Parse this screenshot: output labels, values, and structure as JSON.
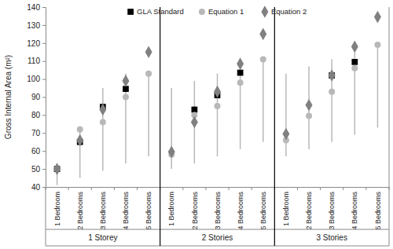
{
  "chart_data": {
    "type": "scatter",
    "y_label": "Gross Internal Area (m²)",
    "categories": [
      "1 Bedroom",
      "2 Bedrooms",
      "3 Bedrooms",
      "4 Bedrooms",
      "5 Bedrooms",
      "1 Bedroom",
      "2 Bedrooms",
      "3 Bedrooms",
      "4 Bedrooms",
      "5 Bedrooms",
      "1 Bedroom",
      "2 Bedrooms",
      "3 Bedrooms",
      "4 Bedrooms",
      "5 Bedrooms"
    ],
    "groups": [
      {
        "label": "1 Storey",
        "count": 5
      },
      {
        "label": "2 Stories",
        "count": 5
      },
      {
        "label": "3 Stories",
        "count": 5
      }
    ],
    "series": [
      {
        "name": "GLA Standard",
        "color": "#000000",
        "marker": "square",
        "values": [
          50,
          65,
          84.5,
          94.5,
          null,
          null,
          83,
          91,
          103.5,
          null,
          null,
          null,
          102,
          109.5,
          null
        ]
      },
      {
        "name": "Equation 1",
        "color": "#b8b8b8",
        "marker": "circle",
        "values": [
          50,
          72,
          76,
          90,
          103,
          58,
          80,
          85,
          98,
          111,
          66,
          79.5,
          93,
          106,
          119
        ],
        "error_low": [
          41,
          45,
          49,
          53,
          57,
          50,
          53,
          57,
          61,
          65,
          57,
          61,
          65,
          69,
          73
        ],
        "error_high": [
          50,
          72,
          95,
          103,
          103,
          95,
          99,
          103,
          107,
          111,
          103,
          107,
          111,
          115,
          119
        ]
      },
      {
        "name": "Equation 2",
        "color": "#808080",
        "marker": "diamond",
        "values": [
          50,
          66,
          83,
          99,
          115,
          59.5,
          76,
          93,
          108.5,
          125,
          69.5,
          85.5,
          102,
          118,
          134.5
        ]
      }
    ],
    "ylim": [
      40,
      140
    ],
    "yticks": [
      40,
      50,
      60,
      70,
      80,
      90,
      100,
      110,
      120,
      130,
      140
    ],
    "grid": false,
    "legend": "top"
  }
}
